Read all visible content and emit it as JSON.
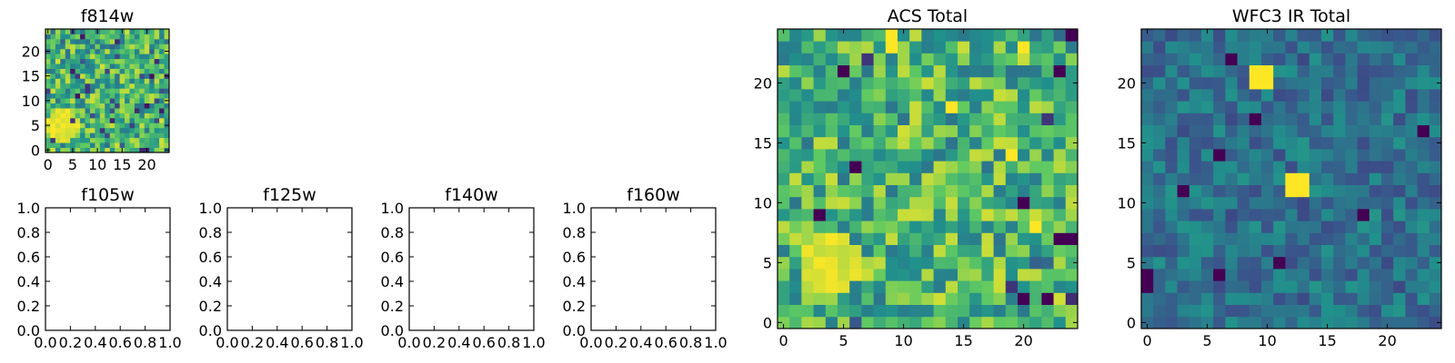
{
  "figure": {
    "background": "#ffffff",
    "colormap": [
      "#440154",
      "#3b528b",
      "#21918c",
      "#5ec962",
      "#fde725"
    ]
  },
  "chart_data": [
    {
      "type": "heatmap",
      "title": "f814w",
      "grid_size": 25,
      "xlim": [
        -0.5,
        24.5
      ],
      "ylim": [
        -0.5,
        24.5
      ],
      "x_ticks": [
        0,
        5,
        10,
        15,
        20
      ],
      "y_ticks": [
        0,
        5,
        10,
        15,
        20
      ],
      "bright_blob": {
        "x": 3,
        "y": 5,
        "radius": 3
      },
      "noise": "random-green-yellow"
    },
    {
      "type": "empty",
      "title": "f105w",
      "xlim": [
        0.0,
        1.0
      ],
      "ylim": [
        0.0,
        1.0
      ],
      "x_ticks": [
        "0.0",
        "0.2",
        "0.4",
        "0.6",
        "0.8",
        "1.0"
      ],
      "y_ticks": [
        "0.0",
        "0.2",
        "0.4",
        "0.6",
        "0.8",
        "1.0"
      ]
    },
    {
      "type": "empty",
      "title": "f125w",
      "xlim": [
        0.0,
        1.0
      ],
      "ylim": [
        0.0,
        1.0
      ],
      "x_ticks": [
        "0.0",
        "0.2",
        "0.4",
        "0.6",
        "0.8",
        "1.0"
      ],
      "y_ticks": [
        "0.0",
        "0.2",
        "0.4",
        "0.6",
        "0.8",
        "1.0"
      ]
    },
    {
      "type": "empty",
      "title": "f140w",
      "xlim": [
        0.0,
        1.0
      ],
      "ylim": [
        0.0,
        1.0
      ],
      "x_ticks": [
        "0.0",
        "0.2",
        "0.4",
        "0.6",
        "0.8",
        "1.0"
      ],
      "y_ticks": [
        "0.0",
        "0.2",
        "0.4",
        "0.6",
        "0.8",
        "1.0"
      ]
    },
    {
      "type": "empty",
      "title": "f160w",
      "xlim": [
        0.0,
        1.0
      ],
      "ylim": [
        0.0,
        1.0
      ],
      "x_ticks": [
        "0.0",
        "0.2",
        "0.4",
        "0.6",
        "0.8",
        "1.0"
      ],
      "y_ticks": [
        "0.0",
        "0.2",
        "0.4",
        "0.6",
        "0.8",
        "1.0"
      ]
    },
    {
      "type": "heatmap",
      "title": "ACS Total",
      "grid_size": 25,
      "xlim": [
        -0.5,
        24.5
      ],
      "ylim": [
        -0.5,
        24.5
      ],
      "x_ticks": [
        0,
        5,
        10,
        15,
        20
      ],
      "y_ticks": [
        0,
        5,
        10,
        15,
        20
      ],
      "bright_blob": {
        "x": 4,
        "y": 5,
        "radius": 2
      },
      "bright_pixels": [
        [
          9,
          24
        ],
        [
          9,
          23
        ],
        [
          20,
          23
        ],
        [
          19,
          14
        ],
        [
          21,
          8
        ],
        [
          14,
          18
        ]
      ],
      "dark_pixels": [
        [
          5,
          21
        ],
        [
          3,
          9
        ],
        [
          20,
          10
        ],
        [
          23,
          7
        ],
        [
          24,
          7
        ],
        [
          20,
          2
        ],
        [
          22,
          2
        ],
        [
          23,
          21
        ],
        [
          6,
          13
        ],
        [
          24,
          24
        ]
      ],
      "noise": "random-green-yellow"
    },
    {
      "type": "heatmap",
      "title": "WFC3 IR Total",
      "grid_size": 25,
      "xlim": [
        -0.5,
        24.5
      ],
      "ylim": [
        -0.5,
        24.5
      ],
      "x_ticks": [
        0,
        5,
        10,
        15,
        20
      ],
      "y_ticks": [
        0,
        5,
        10,
        15,
        20
      ],
      "bright_pixels": [
        [
          9,
          20
        ],
        [
          10,
          20
        ],
        [
          9,
          21
        ],
        [
          10,
          21
        ],
        [
          12,
          11
        ],
        [
          13,
          11
        ],
        [
          12,
          12
        ],
        [
          13,
          12
        ]
      ],
      "dark_pixels": [
        [
          0,
          3
        ],
        [
          0,
          4
        ],
        [
          9,
          17
        ],
        [
          7,
          22
        ],
        [
          3,
          11
        ],
        [
          6,
          4
        ],
        [
          11,
          5
        ],
        [
          18,
          9
        ],
        [
          6,
          14
        ],
        [
          23,
          16
        ]
      ],
      "noise": "random-teal-blue"
    }
  ]
}
